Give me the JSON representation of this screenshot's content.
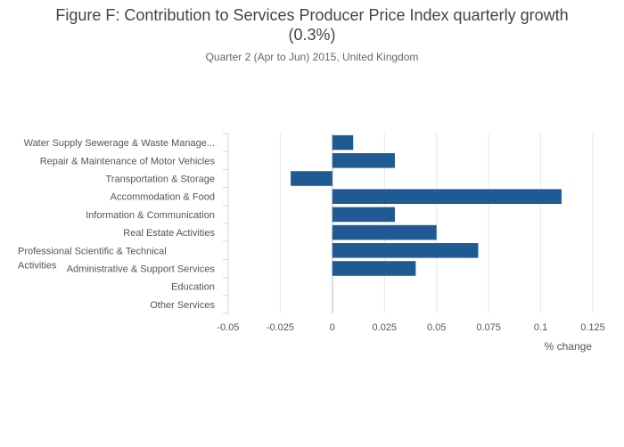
{
  "chart_data": {
    "type": "bar",
    "orientation": "horizontal",
    "title": "Figure F: Contribution to Services Producer Price Index quarterly growth (0.3%)",
    "subtitle": "Quarter 2 (Apr to Jun) 2015, United Kingdom",
    "xlabel": "% change",
    "ylabel": "",
    "xlim": [
      -0.05,
      0.125
    ],
    "xticks": [
      "-0.05",
      "-0.025",
      "0",
      "0.025",
      "0.05",
      "0.075",
      "0.1",
      "0.125"
    ],
    "grid": true,
    "bar_color": "#1f5a92",
    "categories": [
      "Water Supply Sewerage & Waste Manage...",
      "Repair & Maintenance of Motor Vehicles",
      "Transportation & Storage",
      "Accommodation & Food",
      "Information & Communication",
      "Real Estate Activities",
      "Professional Scientific & Technical Activities",
      "Administrative & Support Services",
      "Education",
      "Other Services"
    ],
    "values": [
      0.01,
      0.03,
      -0.02,
      0.11,
      0.03,
      0.05,
      0.07,
      0.04,
      0,
      0
    ]
  }
}
